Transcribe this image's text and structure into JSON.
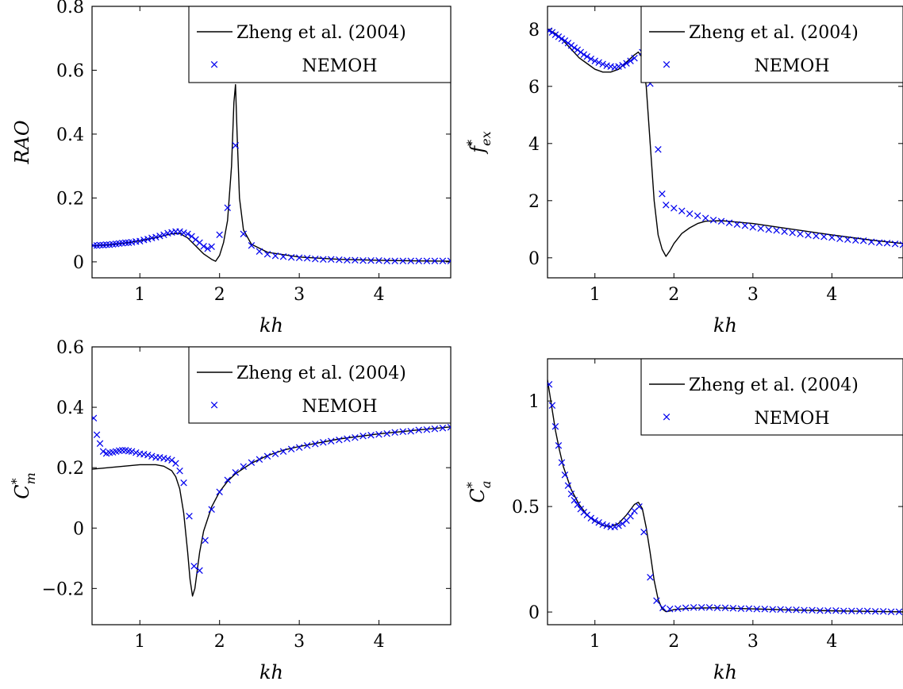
{
  "colors": {
    "reference": "#000000",
    "nemoh": "#0000ee",
    "frame": "#000000"
  },
  "legend": {
    "line_label": "Zheng et al. (2004)",
    "marker_label": "NEMOH",
    "marker_glyph": "×"
  },
  "chart_data": [
    {
      "type": "line",
      "xlabel": "kh",
      "ylabel": "RAO",
      "xlim": [
        0.4,
        4.9
      ],
      "ylim": [
        -0.05,
        0.8
      ],
      "xticks": [
        1,
        2,
        3,
        4
      ],
      "yticks": [
        0,
        0.2,
        0.4,
        0.6,
        0.8
      ],
      "ytick_labels": [
        "0",
        "0.2",
        "0.4",
        "0.6",
        "0.8"
      ],
      "legend_position": "top-right",
      "grid": false,
      "series": [
        {
          "name": "Zheng et al. (2004)",
          "style": "line",
          "x": [
            0.4,
            0.6,
            0.8,
            1.0,
            1.2,
            1.4,
            1.5,
            1.6,
            1.7,
            1.8,
            1.9,
            1.95,
            2.0,
            2.05,
            2.1,
            2.15,
            2.18,
            2.2,
            2.22,
            2.25,
            2.3,
            2.4,
            2.6,
            3.0,
            3.5,
            4.0,
            4.5,
            4.9
          ],
          "y": [
            0.05,
            0.053,
            0.058,
            0.066,
            0.076,
            0.088,
            0.089,
            0.075,
            0.05,
            0.025,
            0.008,
            0.002,
            0.02,
            0.06,
            0.13,
            0.3,
            0.5,
            0.555,
            0.4,
            0.2,
            0.1,
            0.055,
            0.03,
            0.015,
            0.008,
            0.005,
            0.003,
            0.002
          ]
        },
        {
          "name": "NEMOH",
          "style": "marker",
          "x": [
            0.42,
            0.46,
            0.5,
            0.54,
            0.58,
            0.62,
            0.66,
            0.7,
            0.74,
            0.78,
            0.82,
            0.86,
            0.9,
            0.95,
            1.0,
            1.05,
            1.1,
            1.15,
            1.2,
            1.25,
            1.3,
            1.35,
            1.4,
            1.45,
            1.5,
            1.55,
            1.6,
            1.65,
            1.7,
            1.75,
            1.8,
            1.85,
            1.9,
            2.0,
            2.1,
            2.2,
            2.3,
            2.4,
            2.5,
            2.6,
            2.7,
            2.8,
            2.9,
            3.0,
            3.1,
            3.2,
            3.3,
            3.4,
            3.5,
            3.6,
            3.7,
            3.8,
            3.9,
            4.0,
            4.1,
            4.2,
            4.3,
            4.4,
            4.5,
            4.6,
            4.7,
            4.8,
            4.9
          ],
          "y": [
            0.052,
            0.052,
            0.053,
            0.053,
            0.054,
            0.055,
            0.056,
            0.057,
            0.058,
            0.059,
            0.06,
            0.061,
            0.062,
            0.064,
            0.066,
            0.069,
            0.072,
            0.075,
            0.078,
            0.082,
            0.086,
            0.09,
            0.093,
            0.095,
            0.095,
            0.092,
            0.088,
            0.08,
            0.07,
            0.06,
            0.05,
            0.042,
            0.048,
            0.085,
            0.17,
            0.365,
            0.088,
            0.052,
            0.033,
            0.025,
            0.02,
            0.017,
            0.015,
            0.013,
            0.012,
            0.01,
            0.009,
            0.008,
            0.007,
            0.006,
            0.006,
            0.005,
            0.005,
            0.005,
            0.004,
            0.004,
            0.004,
            0.004,
            0.003,
            0.003,
            0.003,
            0.003,
            0.003
          ]
        }
      ]
    },
    {
      "type": "line",
      "xlabel": "kh",
      "ylabel": "f*_ex",
      "ylabel_main": "f",
      "ylabel_sup": "*",
      "ylabel_sub": "ex",
      "xlim": [
        0.4,
        4.9
      ],
      "ylim": [
        -0.7,
        8.8
      ],
      "xticks": [
        1,
        2,
        3,
        4
      ],
      "yticks": [
        0,
        2,
        4,
        6,
        8
      ],
      "ytick_labels": [
        "0",
        "2",
        "4",
        "6",
        "8"
      ],
      "legend_position": "top-right",
      "grid": false,
      "series": [
        {
          "name": "Zheng et al. (2004)",
          "style": "line",
          "x": [
            0.4,
            0.5,
            0.6,
            0.7,
            0.8,
            0.9,
            1.0,
            1.1,
            1.2,
            1.3,
            1.4,
            1.5,
            1.55,
            1.6,
            1.65,
            1.7,
            1.75,
            1.8,
            1.85,
            1.9,
            1.95,
            2.0,
            2.1,
            2.2,
            2.3,
            2.4,
            2.6,
            3.0,
            3.5,
            4.0,
            4.5,
            4.9
          ],
          "y": [
            8.0,
            7.85,
            7.6,
            7.3,
            7.0,
            6.8,
            6.6,
            6.5,
            6.5,
            6.6,
            6.85,
            7.1,
            7.2,
            7.0,
            6.0,
            4.0,
            2.0,
            0.8,
            0.3,
            0.05,
            0.25,
            0.5,
            0.85,
            1.05,
            1.2,
            1.28,
            1.3,
            1.2,
            1.0,
            0.8,
            0.62,
            0.5
          ]
        },
        {
          "name": "NEMOH",
          "style": "marker",
          "x": [
            0.42,
            0.46,
            0.5,
            0.54,
            0.58,
            0.62,
            0.66,
            0.7,
            0.74,
            0.78,
            0.82,
            0.86,
            0.9,
            0.95,
            1.0,
            1.05,
            1.1,
            1.15,
            1.2,
            1.25,
            1.3,
            1.35,
            1.4,
            1.45,
            1.5,
            1.6,
            1.7,
            1.75,
            1.8,
            1.85,
            1.9,
            2.0,
            2.1,
            2.2,
            2.3,
            2.4,
            2.5,
            2.6,
            2.7,
            2.8,
            2.9,
            3.0,
            3.1,
            3.2,
            3.3,
            3.4,
            3.5,
            3.6,
            3.7,
            3.8,
            3.9,
            4.0,
            4.1,
            4.2,
            4.3,
            4.4,
            4.5,
            4.6,
            4.7,
            4.8,
            4.9
          ],
          "y": [
            7.95,
            7.9,
            7.82,
            7.75,
            7.67,
            7.6,
            7.52,
            7.44,
            7.36,
            7.28,
            7.2,
            7.12,
            7.05,
            6.97,
            6.9,
            6.84,
            6.78,
            6.73,
            6.7,
            6.68,
            6.7,
            6.75,
            6.82,
            6.9,
            7.0,
            7.2,
            6.1,
            6.85,
            3.8,
            2.25,
            1.85,
            1.75,
            1.65,
            1.55,
            1.48,
            1.4,
            1.33,
            1.28,
            1.23,
            1.18,
            1.13,
            1.08,
            1.04,
            1.0,
            0.96,
            0.92,
            0.88,
            0.84,
            0.8,
            0.77,
            0.74,
            0.71,
            0.68,
            0.65,
            0.62,
            0.6,
            0.57,
            0.54,
            0.52,
            0.49,
            0.46
          ]
        }
      ]
    },
    {
      "type": "line",
      "xlabel": "kh",
      "ylabel": "C*_m",
      "ylabel_main": "C",
      "ylabel_sup": "*",
      "ylabel_sub": "m",
      "xlim": [
        0.4,
        4.9
      ],
      "ylim": [
        -0.32,
        0.6
      ],
      "xticks": [
        1,
        2,
        3,
        4
      ],
      "yticks": [
        -0.2,
        0,
        0.2,
        0.4,
        0.6
      ],
      "ytick_labels": [
        "−0.2",
        "0",
        "0.2",
        "0.4",
        "0.6"
      ],
      "legend_position": "top-right",
      "grid": false,
      "series": [
        {
          "name": "Zheng et al. (2004)",
          "style": "line",
          "x": [
            0.4,
            0.6,
            0.8,
            1.0,
            1.2,
            1.3,
            1.4,
            1.45,
            1.5,
            1.55,
            1.6,
            1.63,
            1.66,
            1.69,
            1.72,
            1.75,
            1.8,
            1.9,
            2.0,
            2.1,
            2.2,
            2.4,
            2.6,
            2.8,
            3.0,
            3.5,
            4.0,
            4.5,
            4.9
          ],
          "y": [
            0.195,
            0.2,
            0.205,
            0.21,
            0.21,
            0.205,
            0.19,
            0.17,
            0.13,
            0.05,
            -0.08,
            -0.17,
            -0.225,
            -0.2,
            -0.14,
            -0.08,
            -0.01,
            0.07,
            0.12,
            0.155,
            0.18,
            0.215,
            0.24,
            0.258,
            0.27,
            0.295,
            0.312,
            0.325,
            0.335
          ]
        },
        {
          "name": "NEMOH",
          "style": "marker",
          "x": [
            0.42,
            0.46,
            0.5,
            0.54,
            0.58,
            0.62,
            0.66,
            0.7,
            0.74,
            0.78,
            0.82,
            0.86,
            0.9,
            0.95,
            1.0,
            1.05,
            1.1,
            1.15,
            1.2,
            1.25,
            1.3,
            1.35,
            1.4,
            1.45,
            1.5,
            1.55,
            1.62,
            1.68,
            1.75,
            1.82,
            1.9,
            2.0,
            2.1,
            2.2,
            2.3,
            2.4,
            2.5,
            2.6,
            2.7,
            2.8,
            2.9,
            3.0,
            3.1,
            3.2,
            3.3,
            3.4,
            3.5,
            3.6,
            3.7,
            3.8,
            3.9,
            4.0,
            4.1,
            4.2,
            4.3,
            4.4,
            4.5,
            4.6,
            4.7,
            4.8,
            4.9
          ],
          "y": [
            0.365,
            0.31,
            0.28,
            0.255,
            0.248,
            0.25,
            0.252,
            0.255,
            0.257,
            0.258,
            0.258,
            0.256,
            0.254,
            0.25,
            0.247,
            0.245,
            0.242,
            0.238,
            0.235,
            0.234,
            0.232,
            0.23,
            0.225,
            0.215,
            0.19,
            0.15,
            0.04,
            -0.125,
            -0.14,
            -0.04,
            0.062,
            0.12,
            0.16,
            0.185,
            0.205,
            0.218,
            0.228,
            0.238,
            0.247,
            0.255,
            0.262,
            0.268,
            0.274,
            0.279,
            0.284,
            0.289,
            0.293,
            0.297,
            0.301,
            0.305,
            0.308,
            0.311,
            0.314,
            0.317,
            0.32,
            0.322,
            0.325,
            0.327,
            0.329,
            0.332,
            0.335
          ]
        }
      ]
    },
    {
      "type": "line",
      "xlabel": "kh",
      "ylabel": "C*_a",
      "ylabel_main": "C",
      "ylabel_sup": "*",
      "ylabel_sub": "a",
      "xlim": [
        0.4,
        4.9
      ],
      "ylim": [
        -0.06,
        1.2
      ],
      "xticks": [
        1,
        2,
        3,
        4
      ],
      "yticks": [
        0,
        0.5,
        1
      ],
      "ytick_labels": [
        "0",
        "0.5",
        "1"
      ],
      "legend_position": "top-right",
      "grid": false,
      "series": [
        {
          "name": "Zheng et al. (2004)",
          "style": "line",
          "x": [
            0.4,
            0.45,
            0.5,
            0.55,
            0.6,
            0.7,
            0.8,
            0.9,
            1.0,
            1.1,
            1.2,
            1.3,
            1.4,
            1.5,
            1.55,
            1.6,
            1.65,
            1.7,
            1.75,
            1.8,
            1.85,
            1.9,
            1.95,
            2.0,
            2.2,
            2.5,
            3.0,
            3.5,
            4.0,
            4.5,
            4.9
          ],
          "y": [
            1.1,
            0.98,
            0.86,
            0.77,
            0.69,
            0.58,
            0.51,
            0.46,
            0.43,
            0.41,
            0.405,
            0.42,
            0.46,
            0.51,
            0.52,
            0.49,
            0.4,
            0.28,
            0.15,
            0.06,
            0.015,
            0.002,
            0.005,
            0.012,
            0.018,
            0.02,
            0.015,
            0.01,
            0.006,
            0.003,
            0.001
          ]
        },
        {
          "name": "NEMOH",
          "style": "marker",
          "x": [
            0.42,
            0.46,
            0.5,
            0.54,
            0.58,
            0.62,
            0.66,
            0.7,
            0.74,
            0.78,
            0.82,
            0.86,
            0.9,
            0.95,
            1.0,
            1.05,
            1.1,
            1.15,
            1.2,
            1.25,
            1.3,
            1.35,
            1.4,
            1.45,
            1.5,
            1.56,
            1.62,
            1.7,
            1.78,
            1.86,
            1.95,
            2.05,
            2.15,
            2.25,
            2.35,
            2.45,
            2.55,
            2.65,
            2.75,
            2.85,
            2.95,
            3.05,
            3.15,
            3.25,
            3.35,
            3.45,
            3.55,
            3.65,
            3.75,
            3.85,
            3.95,
            4.05,
            4.15,
            4.25,
            4.35,
            4.45,
            4.55,
            4.65,
            4.75,
            4.85
          ],
          "y": [
            1.08,
            0.98,
            0.88,
            0.79,
            0.71,
            0.65,
            0.6,
            0.56,
            0.53,
            0.51,
            0.49,
            0.475,
            0.46,
            0.445,
            0.435,
            0.425,
            0.415,
            0.41,
            0.405,
            0.405,
            0.41,
            0.42,
            0.435,
            0.455,
            0.48,
            0.5,
            0.38,
            0.165,
            0.055,
            0.02,
            0.015,
            0.018,
            0.02,
            0.022,
            0.022,
            0.022,
            0.021,
            0.02,
            0.019,
            0.018,
            0.017,
            0.016,
            0.015,
            0.014,
            0.013,
            0.012,
            0.011,
            0.01,
            0.009,
            0.008,
            0.008,
            0.007,
            0.006,
            0.006,
            0.005,
            0.005,
            0.004,
            0.004,
            0.003,
            0.003
          ]
        }
      ]
    }
  ]
}
